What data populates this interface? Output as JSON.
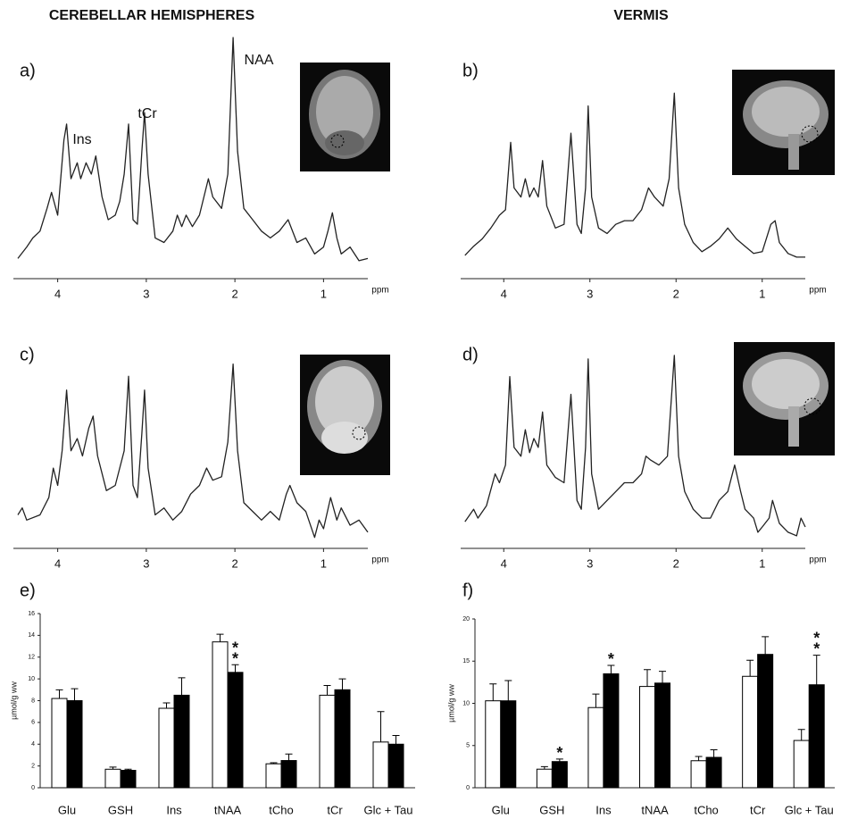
{
  "chart_data": [
    {
      "type": "line",
      "title": "CEREBELLAR HEMISPHERES",
      "label": "a)",
      "xlabel": "ppm",
      "color": "#222222",
      "annotations": [
        "Ins",
        "tCr",
        "NAA"
      ],
      "xlim": [
        4.5,
        0.5
      ],
      "xticks": [
        4,
        3,
        2,
        1
      ],
      "x": [
        4.45,
        4.35,
        4.28,
        4.2,
        4.12,
        4.07,
        4.0,
        3.93,
        3.9,
        3.85,
        3.78,
        3.74,
        3.68,
        3.62,
        3.57,
        3.5,
        3.43,
        3.35,
        3.3,
        3.25,
        3.2,
        3.15,
        3.1,
        3.05,
        3.02,
        2.98,
        2.9,
        2.8,
        2.7,
        2.65,
        2.6,
        2.55,
        2.48,
        2.4,
        2.3,
        2.25,
        2.15,
        2.08,
        2.02,
        1.97,
        1.9,
        1.8,
        1.7,
        1.6,
        1.5,
        1.4,
        1.3,
        1.2,
        1.1,
        1.0,
        0.95,
        0.9,
        0.85,
        0.8,
        0.7,
        0.6,
        0.5
      ],
      "values": [
        3,
        8,
        12,
        15,
        25,
        32,
        22,
        55,
        62,
        38,
        45,
        38,
        45,
        40,
        48,
        30,
        20,
        22,
        28,
        40,
        62,
        20,
        18,
        50,
        67,
        40,
        12,
        10,
        15,
        22,
        17,
        22,
        17,
        22,
        38,
        30,
        25,
        40,
        100,
        50,
        25,
        20,
        15,
        12,
        15,
        20,
        10,
        12,
        5,
        8,
        15,
        23,
        12,
        5,
        8,
        2,
        3
      ]
    },
    {
      "type": "line",
      "title": "VERMIS",
      "label": "b)",
      "xlabel": "ppm",
      "color": "#222222",
      "xlim": [
        4.5,
        0.5
      ],
      "xticks": [
        4,
        3,
        2,
        1
      ],
      "x": [
        4.45,
        4.35,
        4.25,
        4.15,
        4.05,
        3.98,
        3.92,
        3.88,
        3.8,
        3.75,
        3.7,
        3.65,
        3.6,
        3.55,
        3.5,
        3.4,
        3.3,
        3.22,
        3.15,
        3.1,
        3.05,
        3.02,
        2.98,
        2.9,
        2.8,
        2.7,
        2.6,
        2.5,
        2.4,
        2.32,
        2.25,
        2.15,
        2.08,
        2.02,
        1.97,
        1.9,
        1.8,
        1.7,
        1.6,
        1.5,
        1.4,
        1.3,
        1.2,
        1.1,
        1.0,
        0.9,
        0.85,
        0.8,
        0.7,
        0.6,
        0.5
      ],
      "values": [
        3,
        8,
        12,
        18,
        25,
        28,
        65,
        40,
        35,
        45,
        35,
        40,
        35,
        55,
        30,
        18,
        20,
        70,
        20,
        15,
        40,
        85,
        35,
        18,
        15,
        20,
        22,
        22,
        28,
        40,
        35,
        30,
        45,
        92,
        40,
        20,
        10,
        5,
        8,
        12,
        18,
        12,
        8,
        4,
        5,
        20,
        22,
        10,
        4,
        2,
        2
      ]
    },
    {
      "type": "line",
      "label": "c)",
      "xlabel": "ppm",
      "color": "#222222",
      "xlim": [
        4.5,
        0.5
      ],
      "xticks": [
        4,
        3,
        2,
        1
      ],
      "x": [
        4.45,
        4.4,
        4.35,
        4.2,
        4.1,
        4.05,
        4.0,
        3.95,
        3.9,
        3.85,
        3.78,
        3.72,
        3.65,
        3.6,
        3.55,
        3.45,
        3.35,
        3.25,
        3.2,
        3.15,
        3.1,
        3.05,
        3.02,
        2.98,
        2.9,
        2.8,
        2.7,
        2.6,
        2.5,
        2.4,
        2.32,
        2.25,
        2.15,
        2.08,
        2.02,
        1.97,
        1.9,
        1.8,
        1.7,
        1.6,
        1.5,
        1.42,
        1.38,
        1.3,
        1.2,
        1.1,
        1.05,
        1.0,
        0.92,
        0.85,
        0.8,
        0.7,
        0.6,
        0.5
      ],
      "values": [
        8,
        12,
        5,
        8,
        18,
        35,
        25,
        45,
        80,
        45,
        52,
        42,
        58,
        65,
        42,
        22,
        25,
        45,
        88,
        25,
        18,
        55,
        80,
        35,
        8,
        12,
        5,
        10,
        20,
        25,
        35,
        28,
        30,
        50,
        95,
        45,
        15,
        10,
        5,
        10,
        5,
        20,
        25,
        15,
        10,
        -5,
        5,
        0,
        18,
        5,
        12,
        2,
        5,
        -2
      ]
    },
    {
      "type": "line",
      "label": "d)",
      "xlabel": "ppm",
      "color": "#222222",
      "xlim": [
        4.5,
        0.5
      ],
      "xticks": [
        4,
        3,
        2,
        1
      ],
      "x": [
        4.45,
        4.35,
        4.3,
        4.2,
        4.1,
        4.05,
        3.98,
        3.93,
        3.88,
        3.8,
        3.75,
        3.7,
        3.65,
        3.6,
        3.55,
        3.5,
        3.4,
        3.3,
        3.22,
        3.15,
        3.1,
        3.05,
        3.02,
        2.98,
        2.9,
        2.8,
        2.7,
        2.6,
        2.5,
        2.4,
        2.35,
        2.3,
        2.2,
        2.1,
        2.02,
        1.97,
        1.9,
        1.8,
        1.7,
        1.6,
        1.5,
        1.4,
        1.32,
        1.25,
        1.2,
        1.1,
        1.05,
        1.0,
        0.92,
        0.88,
        0.8,
        0.7,
        0.6,
        0.55,
        0.5
      ],
      "values": [
        3,
        10,
        5,
        12,
        30,
        25,
        35,
        85,
        45,
        40,
        55,
        42,
        50,
        45,
        65,
        35,
        28,
        25,
        75,
        15,
        10,
        45,
        95,
        30,
        10,
        15,
        20,
        25,
        25,
        30,
        40,
        38,
        35,
        40,
        97,
        40,
        20,
        10,
        5,
        5,
        15,
        20,
        35,
        20,
        10,
        5,
        -3,
        0,
        5,
        15,
        2,
        -3,
        -5,
        5,
        0
      ]
    },
    {
      "type": "bar",
      "label": "e)",
      "ylabel": "µmol/g ww",
      "categories": [
        "Glu",
        "GSH",
        "Ins",
        "tNAA",
        "tCho",
        "tCr",
        "Glc + Tau"
      ],
      "ylim": [
        0,
        16
      ],
      "yticks": [
        0,
        2,
        4,
        6,
        8,
        10,
        12,
        14,
        16
      ],
      "series": [
        {
          "color": "#ffffff",
          "values": [
            8.2,
            1.7,
            7.3,
            13.4,
            2.2,
            8.5,
            4.2
          ],
          "errors": [
            0.8,
            0.2,
            0.5,
            0.7,
            0.1,
            0.9,
            2.8
          ]
        },
        {
          "color": "#000000",
          "values": [
            8.0,
            1.6,
            8.5,
            10.6,
            2.5,
            9.0,
            4.0
          ],
          "errors": [
            1.1,
            0.1,
            1.6,
            0.7,
            0.6,
            1.0,
            0.8
          ]
        }
      ],
      "significance": [
        null,
        null,
        null,
        "**",
        null,
        null,
        null
      ]
    },
    {
      "type": "bar",
      "label": "f)",
      "ylabel": "µmol/g ww",
      "categories": [
        "Glu",
        "GSH",
        "Ins",
        "tNAA",
        "tCho",
        "tCr",
        "Glc + Tau"
      ],
      "ylim": [
        0,
        20
      ],
      "yticks": [
        0,
        5,
        10,
        15,
        20
      ],
      "series": [
        {
          "color": "#ffffff",
          "values": [
            10.3,
            2.2,
            9.5,
            12.0,
            3.2,
            13.2,
            5.6
          ],
          "errors": [
            2.0,
            0.3,
            1.6,
            2.0,
            0.5,
            1.9,
            1.3
          ]
        },
        {
          "color": "#000000",
          "values": [
            10.3,
            3.1,
            13.5,
            12.4,
            3.6,
            15.8,
            12.2
          ],
          "errors": [
            2.4,
            0.3,
            1.0,
            1.4,
            0.9,
            2.1,
            3.5
          ]
        }
      ],
      "significance": [
        null,
        "*",
        "*",
        null,
        null,
        null,
        "**"
      ]
    }
  ]
}
